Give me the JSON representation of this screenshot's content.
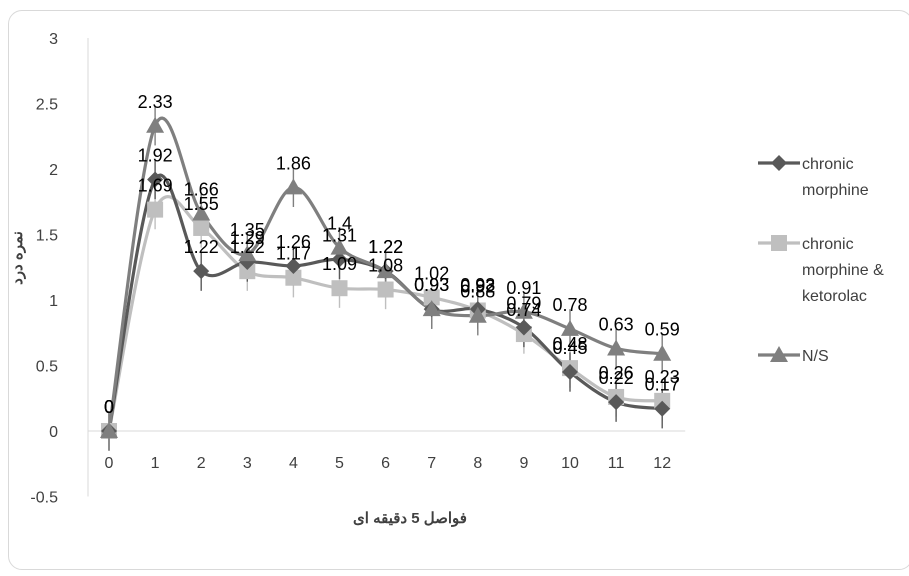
{
  "chart_data": {
    "type": "line",
    "x": [
      0,
      1,
      2,
      3,
      4,
      5,
      6,
      7,
      8,
      9,
      10,
      11,
      12
    ],
    "series": [
      {
        "name": "chronic morphine",
        "name_lines": [
          "chronic",
          "morphine"
        ],
        "color": "#595959",
        "marker": "diamond",
        "values": [
          0,
          1.92,
          1.22,
          1.29,
          1.26,
          1.31,
          1.22,
          0.93,
          0.93,
          0.79,
          0.45,
          0.22,
          0.17
        ]
      },
      {
        "name": "chronic morphine & ketorolac",
        "name_lines": [
          "chronic",
          "morphine &",
          "ketorolac"
        ],
        "color": "#bfbfbf",
        "marker": "square",
        "values": [
          0,
          1.69,
          1.55,
          1.22,
          1.17,
          1.09,
          1.08,
          1.02,
          0.92,
          0.74,
          0.48,
          0.26,
          0.23
        ]
      },
      {
        "name": "N/S",
        "name_lines": [
          "N/S"
        ],
        "color": "#7f7f7f",
        "marker": "triangle",
        "values": [
          0,
          2.33,
          1.66,
          1.35,
          1.86,
          1.4,
          1.22,
          0.93,
          0.88,
          0.91,
          0.78,
          0.63,
          0.59
        ]
      }
    ],
    "error_bar": 0.15,
    "xlabel": "فواصل 5 دقیقه ای",
    "ylabel": "نمره درد",
    "ylim": [
      -0.5,
      3
    ],
    "yticks": [
      -0.5,
      0,
      0.5,
      1,
      1.5,
      2,
      2.5,
      3
    ],
    "xticks": [
      0,
      1,
      2,
      3,
      4,
      5,
      6,
      7,
      8,
      9,
      10,
      11,
      12
    ],
    "legend_position": "right",
    "grid": false
  }
}
